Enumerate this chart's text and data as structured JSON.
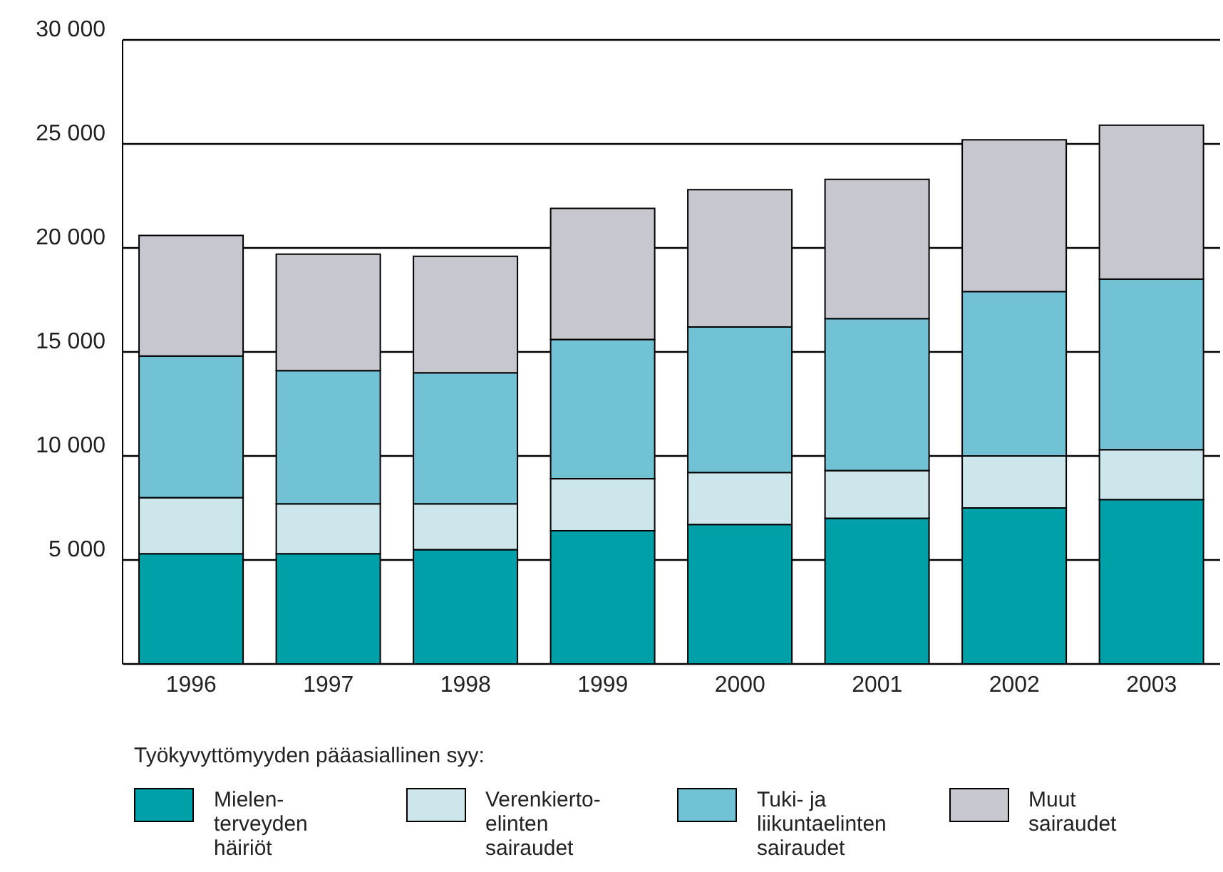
{
  "chart_data": {
    "type": "bar",
    "stacked": true,
    "categories": [
      "1996",
      "1997",
      "1998",
      "1999",
      "2000",
      "2001",
      "2002",
      "2003"
    ],
    "series": [
      {
        "name": "Mielen-terveyden häiriöt",
        "color": "#00a0a8",
        "values": [
          5300,
          5300,
          5500,
          6400,
          6700,
          7000,
          7500,
          7900
        ]
      },
      {
        "name": "Verenkierto-elinten sairaudet",
        "color": "#cce6ec",
        "values": [
          2700,
          2400,
          2200,
          2500,
          2500,
          2300,
          2500,
          2400
        ]
      },
      {
        "name": "Tuki- ja liikuntaelinten sairaudet",
        "color": "#72c2d6",
        "values": [
          6800,
          6400,
          6300,
          6700,
          7000,
          7300,
          7900,
          8200
        ]
      },
      {
        "name": "Muut sairaudet",
        "color": "#c6c7cf",
        "values": [
          5800,
          5600,
          5600,
          6300,
          6600,
          6700,
          7300,
          7400
        ]
      }
    ],
    "ylim": [
      0,
      30000
    ],
    "yticks": [
      {
        "value": 5000,
        "label": "5 000"
      },
      {
        "value": 10000,
        "label": "10 000"
      },
      {
        "value": 15000,
        "label": "15 000"
      },
      {
        "value": 20000,
        "label": "20 000"
      },
      {
        "value": 25000,
        "label": "25 000"
      },
      {
        "value": 30000,
        "label": "30 000"
      }
    ],
    "grid": "y",
    "legend": "bottom",
    "legend_title": "Työkyvyttömyyden pääasiallinen syy:"
  }
}
